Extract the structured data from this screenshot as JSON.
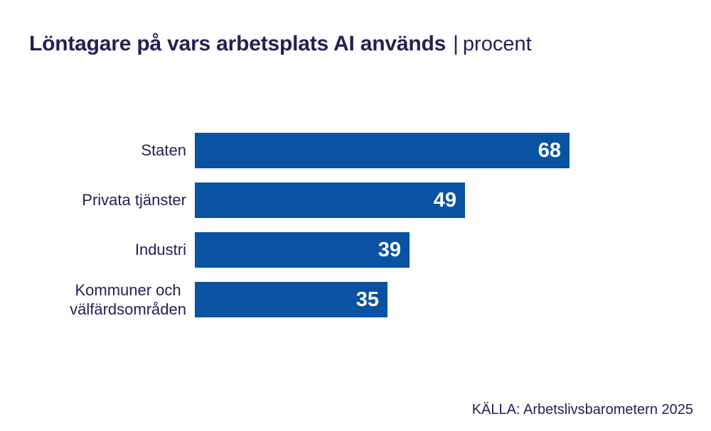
{
  "header": {
    "title_bold": "Löntagare på vars arbetsplats AI används",
    "separator": "|",
    "title_light": "procent"
  },
  "chart_data": {
    "type": "bar",
    "orientation": "horizontal",
    "title": "Löntagare på vars arbetsplats AI används",
    "subtitle": "procent",
    "categories": [
      "Staten",
      "Privata tjänster",
      "Industri",
      "Kommuner och välfärdsområden"
    ],
    "values": [
      68,
      49,
      39,
      35
    ],
    "rows": [
      {
        "label": "Staten",
        "value": 68
      },
      {
        "label": "Privata tjänster",
        "value": 49
      },
      {
        "label": "Industri",
        "value": 39
      },
      {
        "label": "Kommuner och\nvälfärdsområden",
        "value": 35
      }
    ],
    "xlim": [
      0,
      68
    ],
    "grid": false,
    "legend": false,
    "value_labels": "inside-right",
    "unit": "procent"
  },
  "footer": {
    "source": "KÄLLA: Arbetslivsbarometern 2025"
  },
  "colors": {
    "navy_text": "#242056",
    "bar_blue": "#0a52a2",
    "value_text": "#ffffff",
    "background": "#ffffff"
  }
}
